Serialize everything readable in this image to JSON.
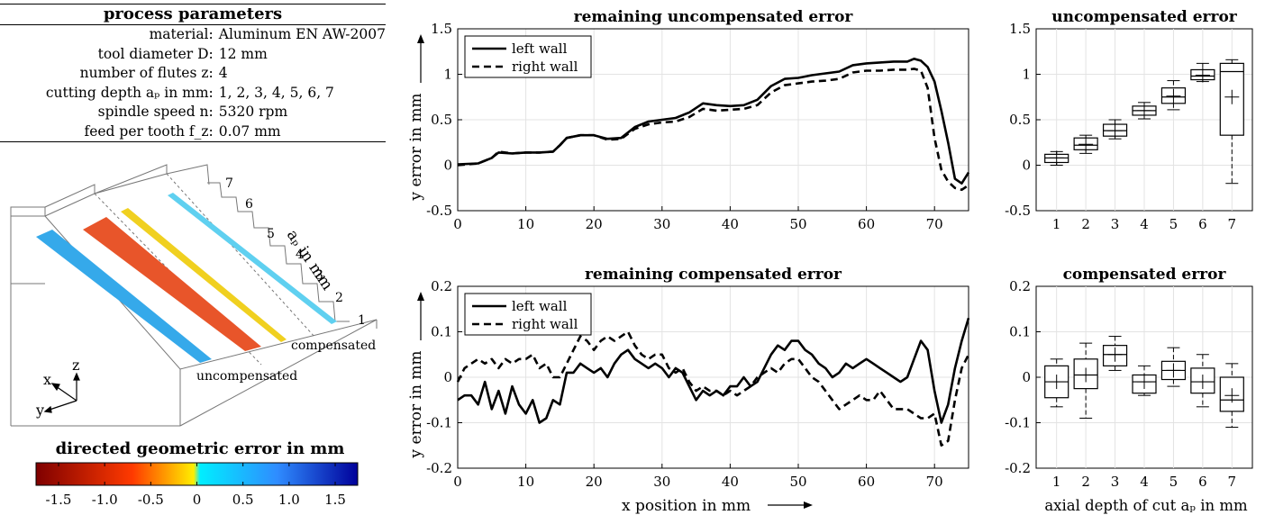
{
  "process_params": {
    "title": "process parameters",
    "rows": [
      {
        "key": "material:",
        "value": "Aluminum EN AW-2007"
      },
      {
        "key": "tool diameter D:",
        "value": "12 mm"
      },
      {
        "key": "number of flutes z:",
        "value": "4"
      },
      {
        "key": "cutting depth aₚ in mm:",
        "value": "1, 2, 3, 4, 5, 6, 7"
      },
      {
        "key": "spindle speed n:",
        "value": "5320 rpm"
      },
      {
        "key": "feed per tooth f_z:",
        "value": "0.07 mm"
      }
    ]
  },
  "illustration": {
    "step_labels": [
      "1",
      "2",
      "3",
      "4",
      "5",
      "6",
      "7"
    ],
    "axis_label": "aₚ in mm",
    "label_compensated": "compensated",
    "label_uncompensated": "uncompensated",
    "axis_x": "x",
    "axis_y": "y",
    "axis_z": "z"
  },
  "colorbar": {
    "title": "directed geometric error in mm",
    "ticks": [
      "-1.5",
      "-1.0",
      "-0.5",
      "0",
      "0.5",
      "1.0",
      "1.5"
    ],
    "colors": {
      "neg_end": "#7f0000",
      "neg_mid": "#ff3a00",
      "near_zero_neg": "#ffee00",
      "near_zero_pos": "#00eeff",
      "pos_mid": "#2f8cff",
      "pos_end": "#00009a"
    }
  },
  "chart_data": [
    {
      "type": "line",
      "title": "remaining uncompensated error",
      "xlabel": "",
      "ylabel": "y error in mm",
      "xlim": [
        0,
        75
      ],
      "ylim": [
        -0.5,
        1.5
      ],
      "xticks": [
        0,
        10,
        20,
        30,
        40,
        50,
        60,
        70
      ],
      "yticks": [
        -0.5,
        0,
        0.5,
        1,
        1.5
      ],
      "ytick_labels": [
        "-0.5",
        "0",
        "0.5",
        "1",
        "1.5"
      ],
      "grid": true,
      "legend": "top-left",
      "series": [
        {
          "name": "left wall",
          "style": "solid",
          "x": [
            0,
            3,
            5,
            6,
            8,
            10,
            12,
            14,
            15,
            16,
            18,
            20,
            22,
            24,
            26,
            28,
            30,
            32,
            34,
            36,
            38,
            40,
            42,
            44,
            46,
            48,
            50,
            52,
            54,
            56,
            58,
            60,
            62,
            64,
            66,
            67,
            68,
            69,
            70,
            71,
            72,
            73,
            74,
            75
          ],
          "y": [
            0.01,
            0.02,
            0.08,
            0.14,
            0.13,
            0.14,
            0.14,
            0.15,
            0.22,
            0.3,
            0.33,
            0.33,
            0.29,
            0.3,
            0.42,
            0.48,
            0.5,
            0.52,
            0.58,
            0.68,
            0.66,
            0.65,
            0.66,
            0.72,
            0.87,
            0.95,
            0.96,
            0.99,
            1.01,
            1.03,
            1.1,
            1.12,
            1.13,
            1.14,
            1.14,
            1.17,
            1.15,
            1.08,
            0.92,
            0.6,
            0.25,
            -0.15,
            -0.2,
            -0.08
          ]
        },
        {
          "name": "right wall",
          "style": "dashed",
          "x": [
            0,
            3,
            5,
            6,
            8,
            10,
            12,
            14,
            15,
            16,
            18,
            20,
            22,
            24,
            26,
            28,
            30,
            32,
            34,
            36,
            38,
            40,
            42,
            44,
            46,
            48,
            50,
            52,
            54,
            56,
            58,
            60,
            62,
            64,
            66,
            67,
            68,
            69,
            70,
            71,
            72,
            73,
            74,
            75
          ],
          "y": [
            0.0,
            0.02,
            0.08,
            0.15,
            0.13,
            0.14,
            0.14,
            0.15,
            0.22,
            0.3,
            0.33,
            0.33,
            0.28,
            0.29,
            0.4,
            0.45,
            0.47,
            0.48,
            0.53,
            0.62,
            0.6,
            0.61,
            0.62,
            0.66,
            0.8,
            0.88,
            0.9,
            0.92,
            0.93,
            0.95,
            1.02,
            1.04,
            1.04,
            1.05,
            1.05,
            1.06,
            1.04,
            0.85,
            0.3,
            -0.05,
            -0.18,
            -0.25,
            -0.27,
            -0.22
          ]
        }
      ]
    },
    {
      "type": "line",
      "title": "remaining compensated error",
      "xlabel": "x position in mm",
      "ylabel": "y error in mm",
      "xlim": [
        0,
        75
      ],
      "ylim": [
        -0.2,
        0.2
      ],
      "xticks": [
        0,
        10,
        20,
        30,
        40,
        50,
        60,
        70
      ],
      "yticks": [
        -0.2,
        -0.1,
        0,
        0.1,
        0.2
      ],
      "ytick_labels": [
        "-0.2",
        "-0.1",
        "0",
        "0.1",
        "0.2"
      ],
      "grid": true,
      "legend": "top-left",
      "series": [
        {
          "name": "left wall",
          "style": "solid",
          "x": [
            0,
            1,
            2,
            3,
            4,
            5,
            6,
            7,
            8,
            9,
            10,
            11,
            12,
            13,
            14,
            15,
            16,
            17,
            18,
            19,
            20,
            21,
            22,
            23,
            24,
            25,
            26,
            27,
            28,
            29,
            30,
            31,
            32,
            33,
            34,
            35,
            36,
            37,
            38,
            39,
            40,
            41,
            42,
            43,
            44,
            45,
            46,
            47,
            48,
            49,
            50,
            51,
            52,
            53,
            54,
            55,
            56,
            57,
            58,
            59,
            60,
            61,
            62,
            63,
            64,
            65,
            66,
            67,
            68,
            69,
            70,
            71,
            72,
            73,
            74,
            75
          ],
          "y": [
            -0.05,
            -0.04,
            -0.04,
            -0.06,
            -0.01,
            -0.07,
            -0.03,
            -0.08,
            -0.02,
            -0.06,
            -0.08,
            -0.05,
            -0.1,
            -0.09,
            -0.05,
            -0.06,
            0.01,
            0.01,
            0.03,
            0.02,
            0.01,
            0.02,
            0.0,
            0.03,
            0.05,
            0.06,
            0.04,
            0.03,
            0.02,
            0.03,
            0.02,
            0.0,
            0.02,
            0.01,
            -0.02,
            -0.05,
            -0.03,
            -0.04,
            -0.03,
            -0.04,
            -0.02,
            -0.02,
            0.0,
            -0.02,
            -0.01,
            0.02,
            0.05,
            0.07,
            0.06,
            0.08,
            0.08,
            0.06,
            0.05,
            0.03,
            0.02,
            0.0,
            0.01,
            0.03,
            0.02,
            0.03,
            0.04,
            0.03,
            0.02,
            0.01,
            0.0,
            -0.01,
            0.0,
            0.04,
            0.08,
            0.06,
            -0.03,
            -0.1,
            -0.06,
            0.02,
            0.08,
            0.13
          ]
        },
        {
          "name": "right wall",
          "style": "dashed",
          "x": [
            0,
            1,
            2,
            3,
            4,
            5,
            6,
            7,
            8,
            9,
            10,
            11,
            12,
            13,
            14,
            15,
            16,
            17,
            18,
            19,
            20,
            21,
            22,
            23,
            24,
            25,
            26,
            27,
            28,
            29,
            30,
            31,
            32,
            33,
            34,
            35,
            36,
            37,
            38,
            39,
            40,
            41,
            42,
            43,
            44,
            45,
            46,
            47,
            48,
            49,
            50,
            51,
            52,
            53,
            54,
            55,
            56,
            57,
            58,
            59,
            60,
            61,
            62,
            63,
            64,
            65,
            66,
            67,
            68,
            69,
            70,
            71,
            72,
            73,
            74,
            75
          ],
          "y": [
            -0.01,
            0.02,
            0.03,
            0.04,
            0.03,
            0.04,
            0.02,
            0.04,
            0.03,
            0.04,
            0.04,
            0.05,
            0.02,
            0.03,
            0.0,
            0.0,
            0.03,
            0.06,
            0.09,
            0.08,
            0.06,
            0.08,
            0.09,
            0.08,
            0.09,
            0.1,
            0.07,
            0.05,
            0.04,
            0.05,
            0.05,
            0.02,
            0.01,
            0.02,
            -0.01,
            -0.03,
            -0.02,
            -0.03,
            -0.03,
            -0.04,
            -0.03,
            -0.04,
            -0.03,
            -0.02,
            0.0,
            0.01,
            0.02,
            0.01,
            0.03,
            0.04,
            0.04,
            0.02,
            0.0,
            -0.01,
            -0.03,
            -0.05,
            -0.07,
            -0.06,
            -0.05,
            -0.04,
            -0.05,
            -0.05,
            -0.03,
            -0.05,
            -0.07,
            -0.07,
            -0.07,
            -0.08,
            -0.09,
            -0.09,
            -0.08,
            -0.15,
            -0.14,
            -0.05,
            0.02,
            0.05
          ]
        }
      ]
    },
    {
      "type": "box",
      "title": "uncompensated error",
      "xlabel": "",
      "ylabel": "",
      "ylim": [
        -0.5,
        1.5
      ],
      "yticks": [
        -0.5,
        0,
        0.5,
        1,
        1.5
      ],
      "ytick_labels": [
        "-0.5",
        "0",
        "0.5",
        "1",
        "1.5"
      ],
      "categories": [
        "1",
        "2",
        "3",
        "4",
        "5",
        "6",
        "7"
      ],
      "boxes": [
        {
          "min": 0.0,
          "q1": 0.03,
          "median": 0.08,
          "q3": 0.12,
          "max": 0.15,
          "mean": 0.08
        },
        {
          "min": 0.13,
          "q1": 0.17,
          "median": 0.22,
          "q3": 0.3,
          "max": 0.33,
          "mean": 0.23
        },
        {
          "min": 0.29,
          "q1": 0.32,
          "median": 0.38,
          "q3": 0.45,
          "max": 0.5,
          "mean": 0.38
        },
        {
          "min": 0.51,
          "q1": 0.55,
          "median": 0.6,
          "q3": 0.65,
          "max": 0.69,
          "mean": 0.6
        },
        {
          "min": 0.61,
          "q1": 0.68,
          "median": 0.75,
          "q3": 0.85,
          "max": 0.93,
          "mean": 0.76
        },
        {
          "min": 0.92,
          "q1": 0.94,
          "median": 0.98,
          "q3": 1.05,
          "max": 1.12,
          "mean": 0.99
        },
        {
          "min": -0.2,
          "q1": 0.33,
          "median": 1.03,
          "q3": 1.12,
          "max": 1.16,
          "mean": 0.75
        }
      ]
    },
    {
      "type": "box",
      "title": "compensated error",
      "xlabel": "axial depth of cut aₚ in mm",
      "ylabel": "",
      "ylim": [
        -0.2,
        0.2
      ],
      "yticks": [
        -0.2,
        -0.1,
        0,
        0.1,
        0.2
      ],
      "ytick_labels": [
        "-0.2",
        "-0.1",
        "0",
        "0.1",
        "0.2"
      ],
      "categories": [
        "1",
        "2",
        "3",
        "4",
        "5",
        "6",
        "7"
      ],
      "boxes": [
        {
          "min": -0.065,
          "q1": -0.045,
          "median": -0.01,
          "q3": 0.025,
          "max": 0.04,
          "mean": -0.01
        },
        {
          "min": -0.09,
          "q1": -0.025,
          "median": 0.005,
          "q3": 0.04,
          "max": 0.075,
          "mean": 0.005
        },
        {
          "min": 0.015,
          "q1": 0.025,
          "median": 0.05,
          "q3": 0.07,
          "max": 0.09,
          "mean": 0.05
        },
        {
          "min": -0.04,
          "q1": -0.035,
          "median": -0.01,
          "q3": 0.005,
          "max": 0.025,
          "mean": -0.01
        },
        {
          "min": -0.02,
          "q1": -0.005,
          "median": 0.015,
          "q3": 0.035,
          "max": 0.065,
          "mean": 0.015
        },
        {
          "min": -0.065,
          "q1": -0.035,
          "median": -0.01,
          "q3": 0.02,
          "max": 0.05,
          "mean": -0.01
        },
        {
          "min": -0.11,
          "q1": -0.075,
          "median": -0.05,
          "q3": 0.0,
          "max": 0.03,
          "mean": -0.04
        }
      ]
    }
  ]
}
